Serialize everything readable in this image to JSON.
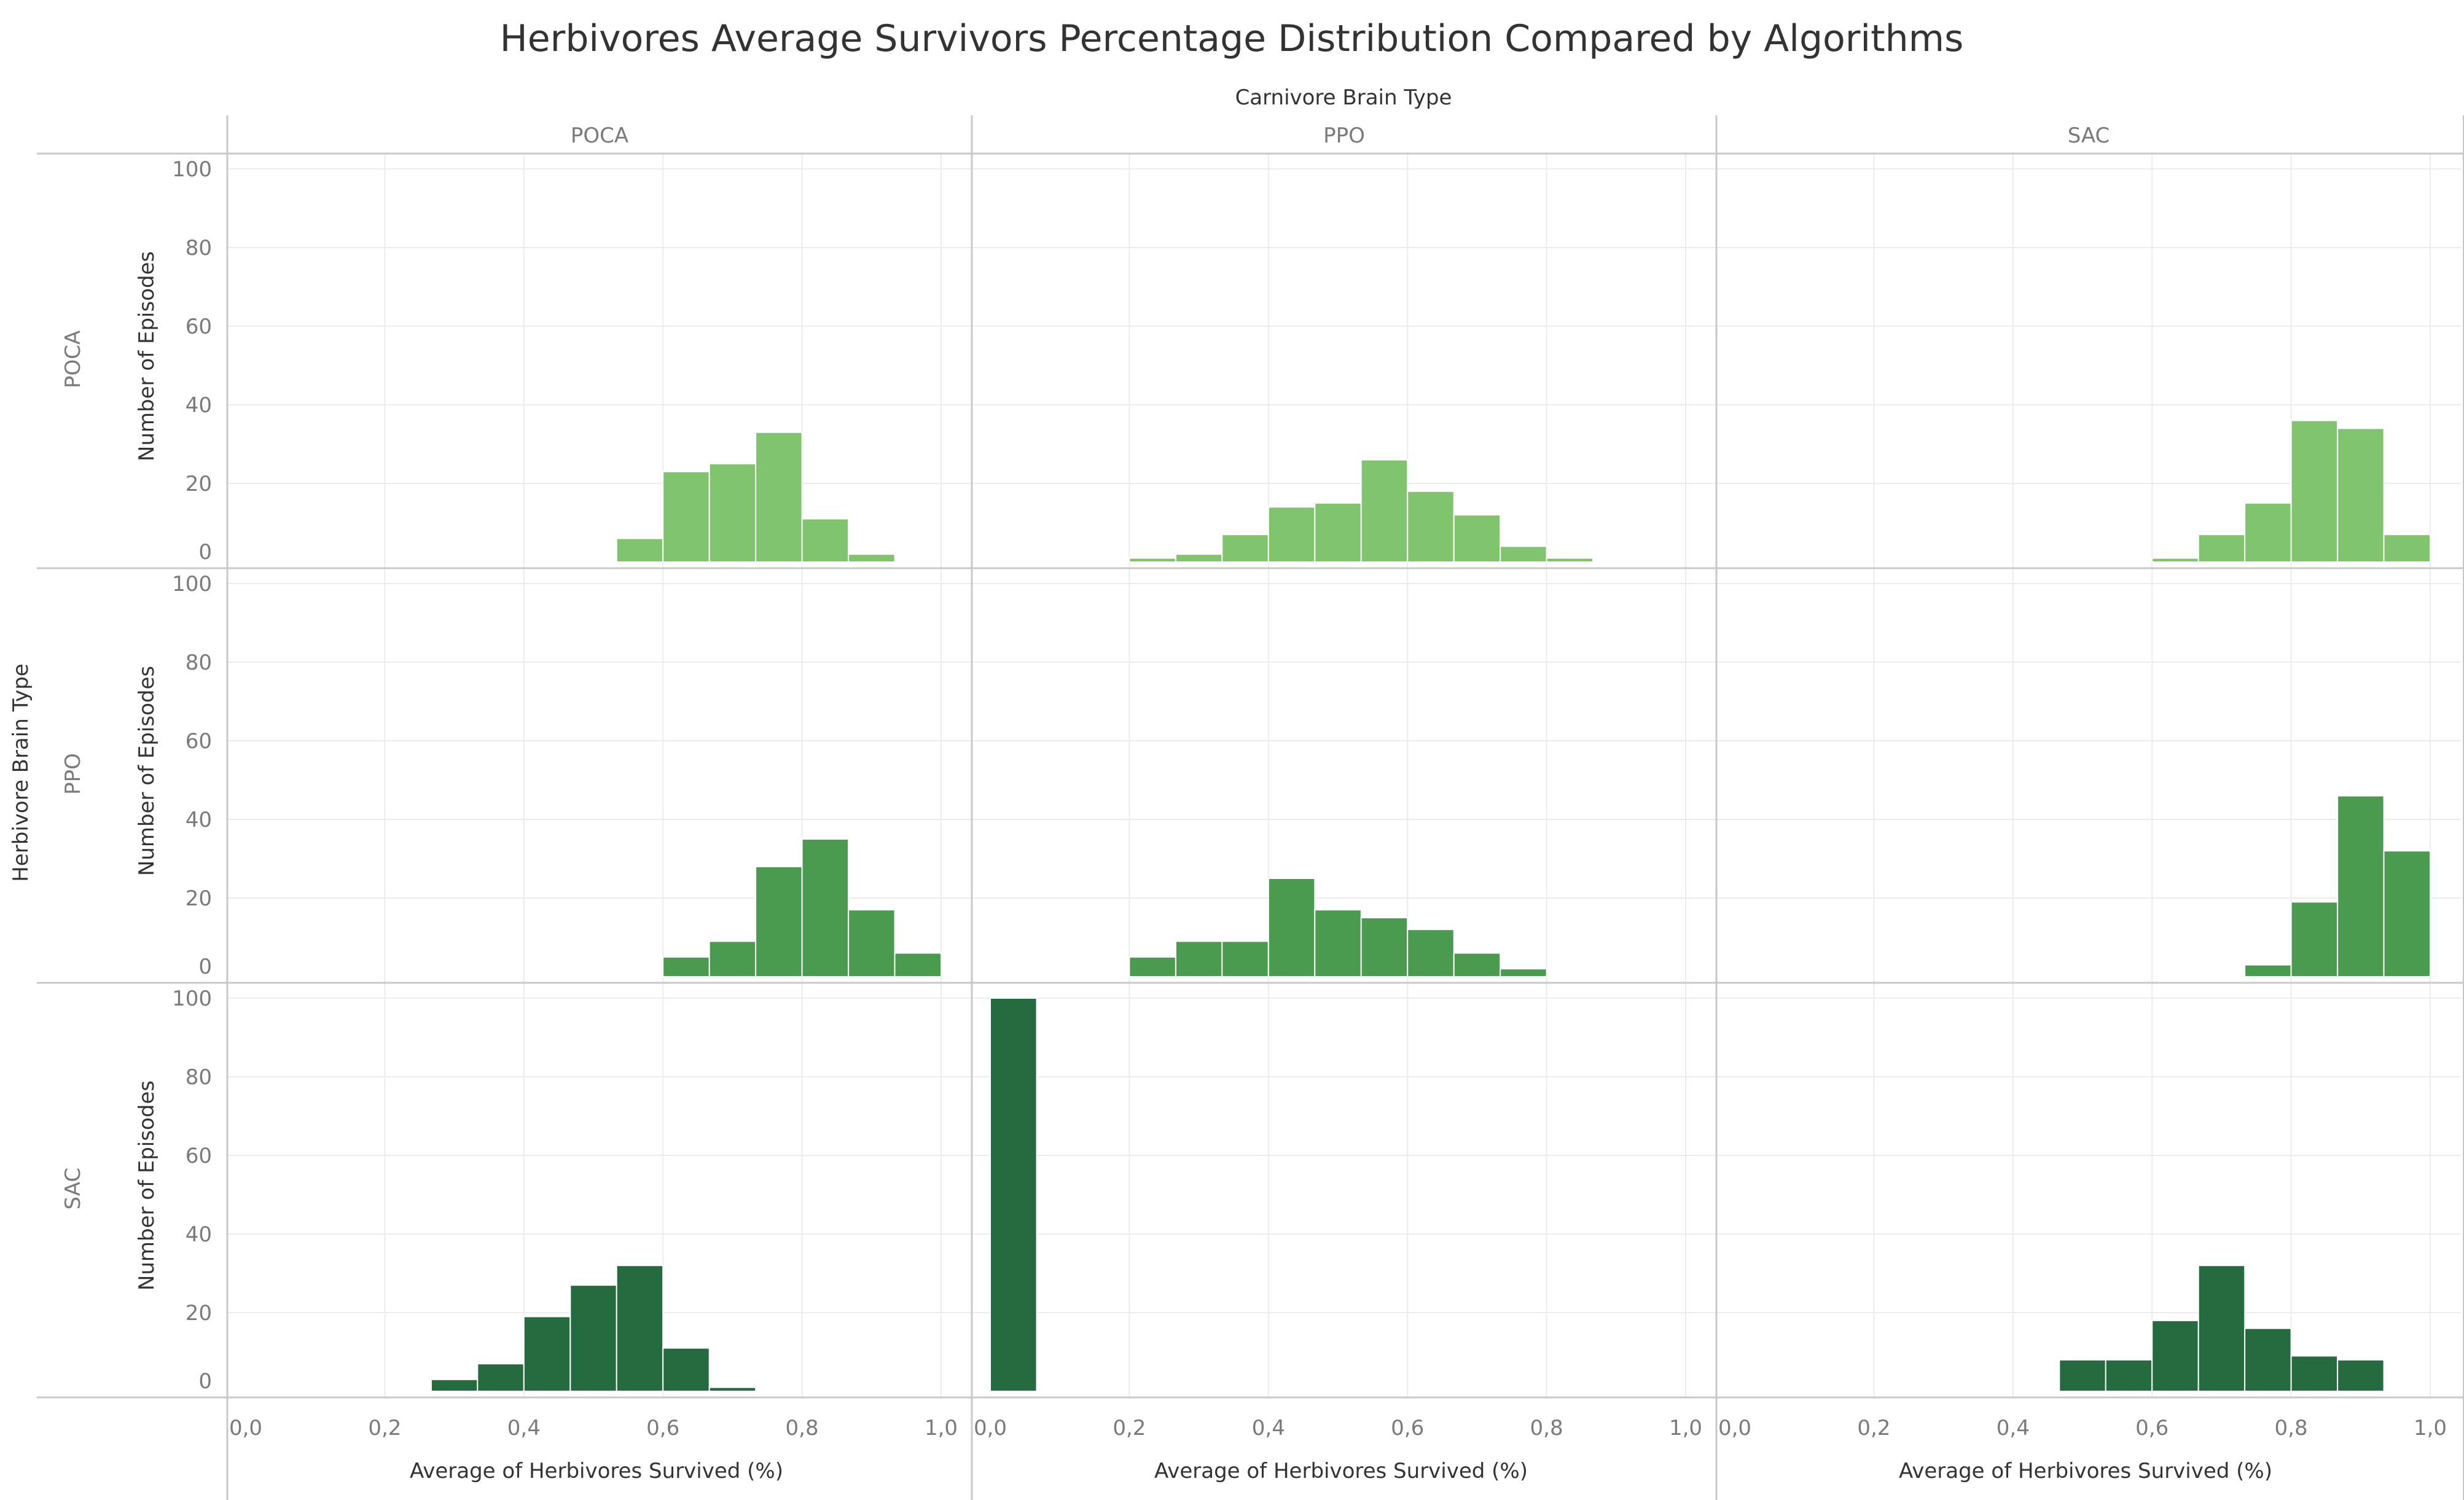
{
  "colors": {
    "POCA": "#80c46e",
    "PPO": "#4a9a4f",
    "SAC": "#246b3f",
    "grid": "#ececec",
    "divider": "#c8c8c8"
  },
  "chart_data": {
    "type": "bar",
    "title": "Herbivores Average Survivors Percentage Distribution Compared by Algorithms",
    "column_header": "Carnivore Brain Type",
    "row_header": "Herbivore Brain Type",
    "columns": [
      "POCA",
      "PPO",
      "SAC"
    ],
    "rows": [
      "POCA",
      "PPO",
      "SAC"
    ],
    "xlabel": "Average of Herbivores Survived (%)",
    "ylabel": "Number of Episodes",
    "xlim": [
      0,
      1
    ],
    "ylim": [
      0,
      100
    ],
    "x_ticks": [
      "0,0",
      "0,2",
      "0,4",
      "0,6",
      "0,8",
      "1,0"
    ],
    "y_ticks": [
      "0",
      "20",
      "40",
      "60",
      "80",
      "100"
    ],
    "bin_width": 0.0667,
    "bin_starts": [
      0,
      0.0667,
      0.1333,
      0.2,
      0.2667,
      0.3333,
      0.4,
      0.4667,
      0.5333,
      0.6,
      0.6667,
      0.7333,
      0.8,
      0.8667,
      0.9333
    ],
    "grid": true,
    "legend": "none",
    "panels": [
      {
        "row": "POCA",
        "col": "POCA",
        "counts": [
          0,
          0,
          0,
          0,
          0,
          0,
          0,
          0,
          6,
          23,
          25,
          33,
          11,
          2,
          0
        ]
      },
      {
        "row": "POCA",
        "col": "PPO",
        "counts": [
          0,
          0,
          0,
          1,
          2,
          7,
          14,
          15,
          26,
          18,
          12,
          4,
          1,
          0,
          0
        ]
      },
      {
        "row": "POCA",
        "col": "SAC",
        "counts": [
          0,
          0,
          0,
          0,
          0,
          0,
          0,
          0,
          0,
          1,
          7,
          15,
          36,
          34,
          7
        ]
      },
      {
        "row": "PPO",
        "col": "POCA",
        "counts": [
          0,
          0,
          0,
          0,
          0,
          0,
          0,
          0,
          0,
          5,
          9,
          28,
          35,
          17,
          6
        ]
      },
      {
        "row": "PPO",
        "col": "PPO",
        "counts": [
          0,
          0,
          0,
          5,
          9,
          9,
          25,
          17,
          15,
          12,
          6,
          2,
          0,
          0,
          0
        ]
      },
      {
        "row": "PPO",
        "col": "SAC",
        "counts": [
          0,
          0,
          0,
          0,
          0,
          0,
          0,
          0,
          0,
          0,
          0,
          3,
          19,
          46,
          32
        ]
      },
      {
        "row": "SAC",
        "col": "POCA",
        "counts": [
          0,
          0,
          0,
          0,
          3,
          7,
          19,
          27,
          32,
          11,
          1,
          0,
          0,
          0,
          0
        ]
      },
      {
        "row": "SAC",
        "col": "PPO",
        "counts": [
          100,
          0,
          0,
          0,
          0,
          0,
          0,
          0,
          0,
          0,
          0,
          0,
          0,
          0,
          0
        ]
      },
      {
        "row": "SAC",
        "col": "SAC",
        "counts": [
          0,
          0,
          0,
          0,
          0,
          0,
          0,
          8,
          8,
          18,
          32,
          16,
          9,
          8,
          0
        ]
      }
    ]
  }
}
